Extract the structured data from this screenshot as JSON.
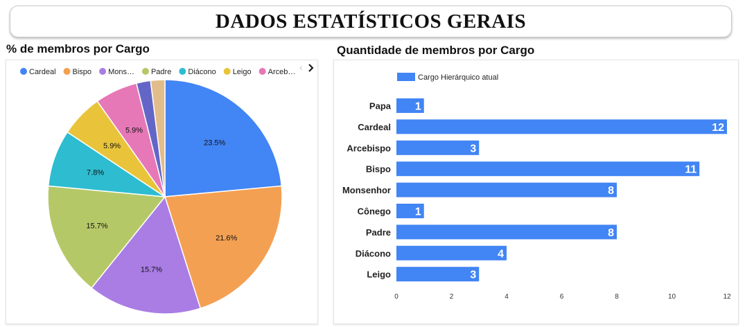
{
  "header": {
    "title": "DADOS ESTATÍSTICOS GERAIS"
  },
  "chart_data": [
    {
      "type": "pie",
      "title": "% de membros por Cargo",
      "categories": [
        "Cardeal",
        "Bispo",
        "Monsenhor",
        "Padre",
        "Diácono",
        "Leigo",
        "Arcebispo",
        "Cônego",
        "Papa"
      ],
      "legend_labels": [
        "Cardeal",
        "Bispo",
        "Mons…",
        "Padre",
        "Diácono",
        "Leigo",
        "Arceb…"
      ],
      "values": [
        12,
        11,
        8,
        8,
        4,
        3,
        3,
        1,
        1
      ],
      "slice_labels": [
        "23.5%",
        "21.6%",
        "15.7%",
        "15.7%",
        "7.8%",
        "5.9%",
        "5.9%",
        "",
        ""
      ],
      "colors": [
        "#4285f4",
        "#f4a052",
        "#a97de4",
        "#b5c867",
        "#2ebcd0",
        "#e9c43a",
        "#e678b7",
        "#6466c7",
        "#e2bd8c"
      ],
      "legend_position": "top"
    },
    {
      "type": "bar",
      "orientation": "horizontal",
      "title": "Quantidade de membros por Cargo",
      "categories": [
        "Papa",
        "Cardeal",
        "Arcebispo",
        "Bispo",
        "Monsenhor",
        "Cônego",
        "Padre",
        "Diácono",
        "Leigo"
      ],
      "series": [
        {
          "name": "Cargo Hierárquico atual",
          "values": [
            1,
            12,
            3,
            11,
            8,
            1,
            8,
            4,
            3
          ]
        }
      ],
      "xlim": [
        0,
        12
      ],
      "xticks": [
        0,
        2,
        4,
        6,
        8,
        10,
        12
      ],
      "color": "#4285f4",
      "legend_position": "top-left"
    }
  ]
}
